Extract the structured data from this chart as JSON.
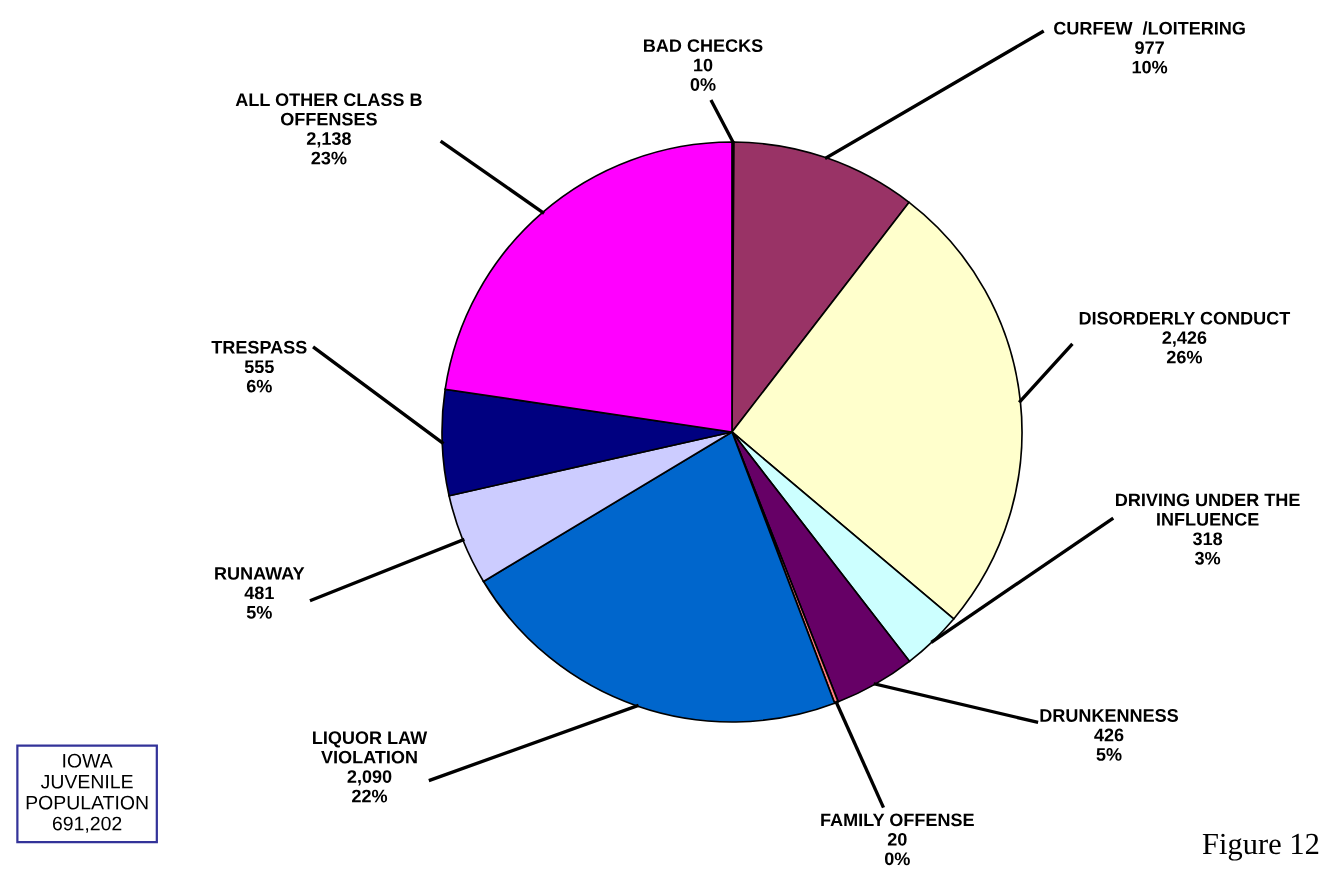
{
  "chart_data": {
    "type": "pie",
    "categories": [
      "BAD CHECKS",
      "CURFEW  /LOITERING",
      "DISORDERLY CONDUCT",
      "DRIVING UNDER THE INFLUENCE",
      "DRUNKENNESS",
      "FAMILY OFFENSE",
      "LIQUOR LAW VIOLATION",
      "RUNAWAY",
      "TRESPASS",
      "ALL OTHER CLASS B OFFENSES"
    ],
    "values": [
      10,
      977,
      2426,
      318,
      426,
      20,
      2090,
      481,
      555,
      2138
    ],
    "value_labels": [
      "10\n0%",
      "977\n10%",
      "2,426\n26%",
      "318\n3%",
      "426\n5%",
      "20\n0%",
      "2,090\n22%",
      "481\n5%",
      "555\n6%",
      "2,138\n23%"
    ],
    "colors": [
      "#cc3366",
      "#993366",
      "#ffffcc",
      "#ccffff",
      "#660066",
      "#ff8080",
      "#0066cc",
      "#ccccff",
      "#000080",
      "#ff00ff"
    ],
    "annotations": [
      "IOWA\nJUVENILE\nPOPULATION\n691,202",
      "Figure 12"
    ],
    "legend": false
  }
}
